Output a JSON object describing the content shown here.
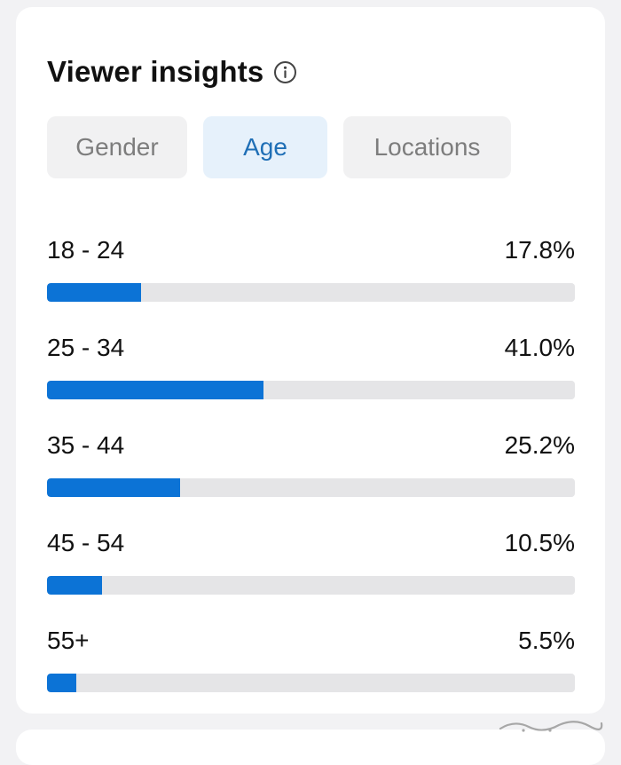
{
  "header": {
    "title": "Viewer insights",
    "info_icon": "info-icon"
  },
  "tabs": [
    {
      "label": "Gender",
      "active": false
    },
    {
      "label": "Age",
      "active": true
    },
    {
      "label": "Locations",
      "active": false
    }
  ],
  "age_breakdown": [
    {
      "range": "18 - 24",
      "percent_label": "17.8%",
      "percent": 17.8
    },
    {
      "range": "25 - 34",
      "percent_label": "41.0%",
      "percent": 41.0
    },
    {
      "range": "35 - 44",
      "percent_label": "25.2%",
      "percent": 25.2
    },
    {
      "range": "45 - 54",
      "percent_label": "10.5%",
      "percent": 10.5
    },
    {
      "range": "55+",
      "percent_label": "5.5%",
      "percent": 5.5
    }
  ],
  "colors": {
    "bar_fill": "#0c73d6",
    "bar_track": "#e5e5e7",
    "active_tab_bg": "#e6f1fb",
    "active_tab_text": "#1f6fb6",
    "inactive_tab_bg": "#f1f1f2",
    "inactive_tab_text": "#7d7d7d"
  }
}
